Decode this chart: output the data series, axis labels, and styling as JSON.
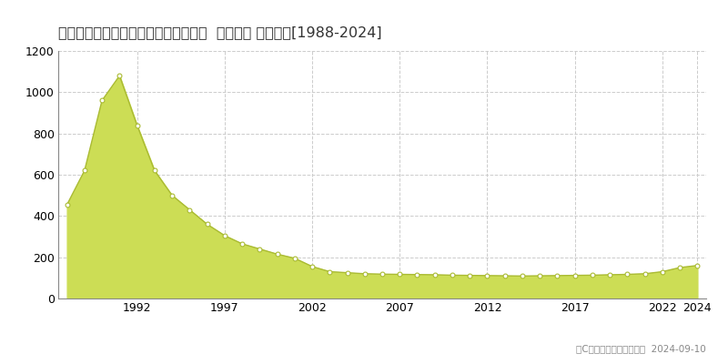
{
  "title": "兵庫県宝塚市逆瀬川１丁目４０番２外  地価公示 地価推移[1988-2024]",
  "years": [
    1988,
    1989,
    1990,
    1991,
    1992,
    1993,
    1994,
    1995,
    1996,
    1997,
    1998,
    1999,
    2000,
    2001,
    2002,
    2003,
    2004,
    2005,
    2006,
    2007,
    2008,
    2009,
    2010,
    2011,
    2012,
    2013,
    2014,
    2015,
    2016,
    2017,
    2018,
    2019,
    2020,
    2021,
    2022,
    2023,
    2024
  ],
  "values": [
    455,
    620,
    960,
    1080,
    840,
    620,
    500,
    430,
    360,
    305,
    265,
    240,
    215,
    195,
    155,
    130,
    125,
    120,
    118,
    117,
    116,
    115,
    113,
    112,
    111,
    110,
    109,
    110,
    111,
    112,
    113,
    115,
    117,
    120,
    130,
    150,
    160
  ],
  "fill_color": "#ccdd55",
  "line_color": "#aabb33",
  "marker_color": "#ffffff",
  "marker_edge_color": "#aabb33",
  "ylim": [
    0,
    1200
  ],
  "yticks": [
    0,
    200,
    400,
    600,
    800,
    1000,
    1200
  ],
  "xticks": [
    1992,
    1997,
    2002,
    2007,
    2012,
    2017,
    2022,
    2024
  ],
  "grid_color": "#cccccc",
  "bg_color": "#ffffff",
  "copyright_text": "（C）土地価格ドットコム  2024-09-10",
  "title_fontsize": 11.5,
  "axis_fontsize": 9,
  "legend_fontsize": 9
}
